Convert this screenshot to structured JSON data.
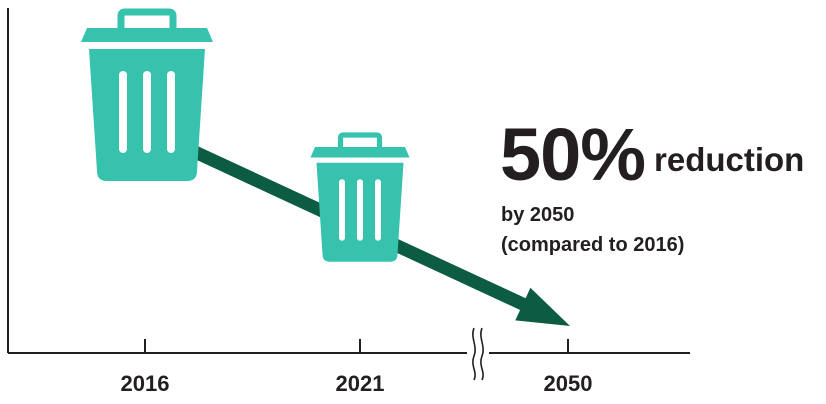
{
  "chart_data": {
    "type": "infographic",
    "categories": [
      "2016",
      "2021",
      "2050"
    ],
    "values": [
      100,
      75,
      50
    ],
    "unit": "%",
    "axis_break_between": [
      "2021",
      "2050"
    ],
    "annotation": {
      "percent": "50%",
      "word": "reduction",
      "line1": "by 2050",
      "line2": "(compared to 2016)"
    },
    "colors": {
      "bin": "#36c2ad",
      "bin_stripe": "#ffffff",
      "arrow": "#0c5b43",
      "axis": "#231f20",
      "text": "#231f20"
    },
    "icons": [
      "trash-bin-icon",
      "trash-bin-icon"
    ]
  }
}
